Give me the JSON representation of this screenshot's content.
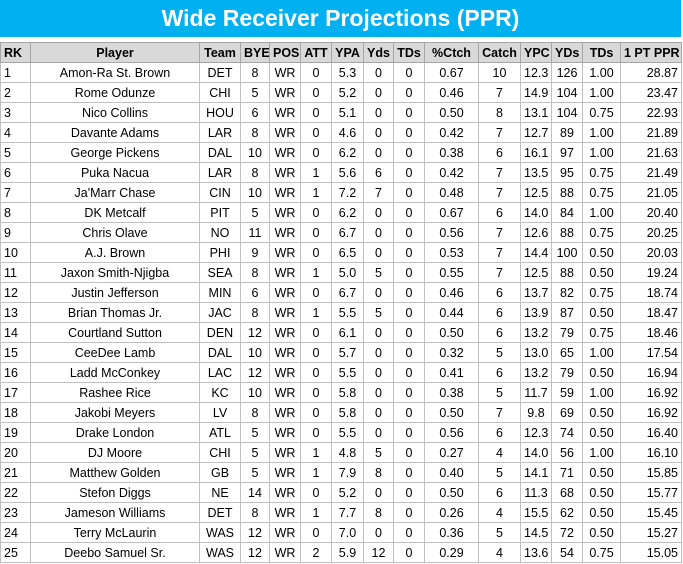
{
  "header": {
    "title": "Wide Receiver Projections (PPR)"
  },
  "table": {
    "columns": [
      "RK",
      "Player",
      "Team",
      "BYE",
      "POS",
      "ATT",
      "YPA",
      "Yds",
      "TDs",
      "%Ctch",
      "Catch",
      "YPC",
      "YDs",
      "TDs",
      "1 PT PPR"
    ],
    "rows": [
      [
        "1",
        "Amon-Ra St. Brown",
        "DET",
        "8",
        "WR",
        "0",
        "5.3",
        "0",
        "0",
        "0.67",
        "10",
        "12.3",
        "126",
        "1.00",
        "28.87"
      ],
      [
        "2",
        "Rome Odunze",
        "CHI",
        "5",
        "WR",
        "0",
        "5.2",
        "0",
        "0",
        "0.46",
        "7",
        "14.9",
        "104",
        "1.00",
        "23.47"
      ],
      [
        "3",
        "Nico Collins",
        "HOU",
        "6",
        "WR",
        "0",
        "5.1",
        "0",
        "0",
        "0.50",
        "8",
        "13.1",
        "104",
        "0.75",
        "22.93"
      ],
      [
        "4",
        "Davante Adams",
        "LAR",
        "8",
        "WR",
        "0",
        "4.6",
        "0",
        "0",
        "0.42",
        "7",
        "12.7",
        "89",
        "1.00",
        "21.89"
      ],
      [
        "5",
        "George Pickens",
        "DAL",
        "10",
        "WR",
        "0",
        "6.2",
        "0",
        "0",
        "0.38",
        "6",
        "16.1",
        "97",
        "1.00",
        "21.63"
      ],
      [
        "6",
        "Puka Nacua",
        "LAR",
        "8",
        "WR",
        "1",
        "5.6",
        "6",
        "0",
        "0.42",
        "7",
        "13.5",
        "95",
        "0.75",
        "21.49"
      ],
      [
        "7",
        "Ja'Marr Chase",
        "CIN",
        "10",
        "WR",
        "1",
        "7.2",
        "7",
        "0",
        "0.48",
        "7",
        "12.5",
        "88",
        "0.75",
        "21.05"
      ],
      [
        "8",
        "DK Metcalf",
        "PIT",
        "5",
        "WR",
        "0",
        "6.2",
        "0",
        "0",
        "0.67",
        "6",
        "14.0",
        "84",
        "1.00",
        "20.40"
      ],
      [
        "9",
        "Chris Olave",
        "NO",
        "11",
        "WR",
        "0",
        "6.7",
        "0",
        "0",
        "0.56",
        "7",
        "12.6",
        "88",
        "0.75",
        "20.25"
      ],
      [
        "10",
        "A.J. Brown",
        "PHI",
        "9",
        "WR",
        "0",
        "6.5",
        "0",
        "0",
        "0.53",
        "7",
        "14.4",
        "100",
        "0.50",
        "20.03"
      ],
      [
        "11",
        "Jaxon Smith-Njigba",
        "SEA",
        "8",
        "WR",
        "1",
        "5.0",
        "5",
        "0",
        "0.55",
        "7",
        "12.5",
        "88",
        "0.50",
        "19.24"
      ],
      [
        "12",
        "Justin Jefferson",
        "MIN",
        "6",
        "WR",
        "0",
        "6.7",
        "0",
        "0",
        "0.46",
        "6",
        "13.7",
        "82",
        "0.75",
        "18.74"
      ],
      [
        "13",
        "Brian Thomas Jr.",
        "JAC",
        "8",
        "WR",
        "1",
        "5.5",
        "5",
        "0",
        "0.44",
        "6",
        "13.9",
        "87",
        "0.50",
        "18.47"
      ],
      [
        "14",
        "Courtland Sutton",
        "DEN",
        "12",
        "WR",
        "0",
        "6.1",
        "0",
        "0",
        "0.50",
        "6",
        "13.2",
        "79",
        "0.75",
        "18.46"
      ],
      [
        "15",
        "CeeDee Lamb",
        "DAL",
        "10",
        "WR",
        "0",
        "5.7",
        "0",
        "0",
        "0.32",
        "5",
        "13.0",
        "65",
        "1.00",
        "17.54"
      ],
      [
        "16",
        "Ladd McConkey",
        "LAC",
        "12",
        "WR",
        "0",
        "5.5",
        "0",
        "0",
        "0.41",
        "6",
        "13.2",
        "79",
        "0.50",
        "16.94"
      ],
      [
        "17",
        "Rashee Rice",
        "KC",
        "10",
        "WR",
        "0",
        "5.8",
        "0",
        "0",
        "0.38",
        "5",
        "11.7",
        "59",
        "1.00",
        "16.92"
      ],
      [
        "18",
        "Jakobi Meyers",
        "LV",
        "8",
        "WR",
        "0",
        "5.8",
        "0",
        "0",
        "0.50",
        "7",
        "9.8",
        "69",
        "0.50",
        "16.92"
      ],
      [
        "19",
        "Drake London",
        "ATL",
        "5",
        "WR",
        "0",
        "5.5",
        "0",
        "0",
        "0.56",
        "6",
        "12.3",
        "74",
        "0.50",
        "16.40"
      ],
      [
        "20",
        "DJ Moore",
        "CHI",
        "5",
        "WR",
        "1",
        "4.8",
        "5",
        "0",
        "0.27",
        "4",
        "14.0",
        "56",
        "1.00",
        "16.10"
      ],
      [
        "21",
        "Matthew Golden",
        "GB",
        "5",
        "WR",
        "1",
        "7.9",
        "8",
        "0",
        "0.40",
        "5",
        "14.1",
        "71",
        "0.50",
        "15.85"
      ],
      [
        "22",
        "Stefon Diggs",
        "NE",
        "14",
        "WR",
        "0",
        "5.2",
        "0",
        "0",
        "0.50",
        "6",
        "11.3",
        "68",
        "0.50",
        "15.77"
      ],
      [
        "23",
        "Jameson Williams",
        "DET",
        "8",
        "WR",
        "1",
        "7.7",
        "8",
        "0",
        "0.26",
        "4",
        "15.5",
        "62",
        "0.50",
        "15.45"
      ],
      [
        "24",
        "Terry McLaurin",
        "WAS",
        "12",
        "WR",
        "0",
        "7.0",
        "0",
        "0",
        "0.36",
        "5",
        "14.5",
        "72",
        "0.50",
        "15.27"
      ],
      [
        "25",
        "Deebo Samuel Sr.",
        "WAS",
        "12",
        "WR",
        "2",
        "5.9",
        "12",
        "0",
        "0.29",
        "4",
        "13.6",
        "54",
        "0.75",
        "15.05"
      ]
    ]
  }
}
